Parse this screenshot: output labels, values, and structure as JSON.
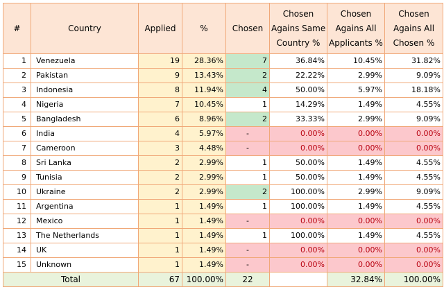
{
  "table": {
    "headers": {
      "num": "#",
      "country": "Country",
      "applied": "Applied",
      "pct": "%",
      "chosen": "Chosen",
      "same_l1": "Chosen",
      "same_l2": "Agains Same",
      "same_l3": "Country %",
      "all_l1": "Chosen",
      "all_l2": "Agains All",
      "all_l3": "Applicants %",
      "allchosen_l1": "Chosen",
      "allchosen_l2": "Agains All",
      "allchosen_l3": "Chosen %"
    },
    "rows": [
      {
        "num": "1",
        "country": "Venezuela",
        "applied": "19",
        "pct": "28.36%",
        "chosen": "7",
        "same": "36.84%",
        "all": "10.45%",
        "allchosen": "31.82%"
      },
      {
        "num": "2",
        "country": "Pakistan",
        "applied": "9",
        "pct": "13.43%",
        "chosen": "2",
        "same": "22.22%",
        "all": "2.99%",
        "allchosen": "9.09%"
      },
      {
        "num": "3",
        "country": "Indonesia",
        "applied": "8",
        "pct": "11.94%",
        "chosen": "4",
        "same": "50.00%",
        "all": "5.97%",
        "allchosen": "18.18%"
      },
      {
        "num": "4",
        "country": "Nigeria",
        "applied": "7",
        "pct": "10.45%",
        "chosen": "1",
        "same": "14.29%",
        "all": "1.49%",
        "allchosen": "4.55%"
      },
      {
        "num": "5",
        "country": "Bangladesh",
        "applied": "6",
        "pct": "8.96%",
        "chosen": "2",
        "same": "33.33%",
        "all": "2.99%",
        "allchosen": "9.09%"
      },
      {
        "num": "6",
        "country": "India",
        "applied": "4",
        "pct": "5.97%",
        "chosen": "-",
        "same": "0.00%",
        "all": "0.00%",
        "allchosen": "0.00%"
      },
      {
        "num": "7",
        "country": "Cameroon",
        "applied": "3",
        "pct": "4.48%",
        "chosen": "-",
        "same": "0.00%",
        "all": "0.00%",
        "allchosen": "0.00%"
      },
      {
        "num": "8",
        "country": "Sri Lanka",
        "applied": "2",
        "pct": "2.99%",
        "chosen": "1",
        "same": "50.00%",
        "all": "1.49%",
        "allchosen": "4.55%"
      },
      {
        "num": "9",
        "country": "Tunisia",
        "applied": "2",
        "pct": "2.99%",
        "chosen": "1",
        "same": "50.00%",
        "all": "1.49%",
        "allchosen": "4.55%"
      },
      {
        "num": "10",
        "country": "Ukraine",
        "applied": "2",
        "pct": "2.99%",
        "chosen": "2",
        "same": "100.00%",
        "all": "2.99%",
        "allchosen": "9.09%"
      },
      {
        "num": "11",
        "country": "Argentina",
        "applied": "1",
        "pct": "1.49%",
        "chosen": "1",
        "same": "100.00%",
        "all": "1.49%",
        "allchosen": "4.55%"
      },
      {
        "num": "12",
        "country": "Mexico",
        "applied": "1",
        "pct": "1.49%",
        "chosen": "-",
        "same": "0.00%",
        "all": "0.00%",
        "allchosen": "0.00%"
      },
      {
        "num": "13",
        "country": "The Netherlands",
        "applied": "1",
        "pct": "1.49%",
        "chosen": "1",
        "same": "100.00%",
        "all": "1.49%",
        "allchosen": "4.55%"
      },
      {
        "num": "14",
        "country": "UK",
        "applied": "1",
        "pct": "1.49%",
        "chosen": "-",
        "same": "0.00%",
        "all": "0.00%",
        "allchosen": "0.00%"
      },
      {
        "num": "15",
        "country": "Unknown",
        "applied": "1",
        "pct": "1.49%",
        "chosen": "-",
        "same": "0.00%",
        "all": "0.00%",
        "allchosen": "0.00%"
      }
    ],
    "total": {
      "label": "Total",
      "applied": "67",
      "pct": "100.00%",
      "chosen": "22",
      "all": "32.84%",
      "allchosen": "100.00%"
    }
  },
  "colors": {
    "header_bg": "#fde5d5",
    "border": "#f0a878",
    "applied_bg": "#fff2cd",
    "chosen_green": "#c5e8cb",
    "zero_pink": "#fcc8cc",
    "zero_text": "#b8000f",
    "total_bg": "#e9f3dc"
  }
}
